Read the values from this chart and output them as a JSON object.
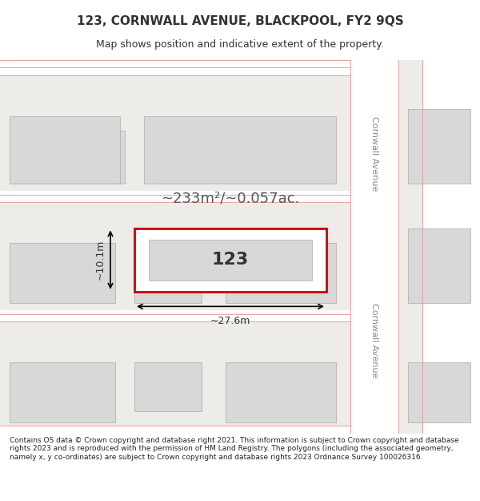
{
  "title": "123, CORNWALL AVENUE, BLACKPOOL, FY2 9QS",
  "subtitle": "Map shows position and indicative extent of the property.",
  "footer": "Contains OS data © Crown copyright and database right 2021. This information is subject to Crown copyright and database rights 2023 and is reproduced with the permission of HM Land Registry. The polygons (including the associated geometry, namely x, y co-ordinates) are subject to Crown copyright and database rights 2023 Ordnance Survey 100026316.",
  "area_text": "~233m²/~0.057ac.",
  "width_label": "~27.6m",
  "height_label": "~10.1m",
  "property_number": "123",
  "bg_color": "#f0eeeb",
  "map_bg": "#f0eeeb",
  "road_color": "#ffffff",
  "grid_line_color": "#e8a0a0",
  "building_fill": "#d8d8d8",
  "building_edge": "#b0b0b0",
  "property_fill": "#ffffff",
  "property_edge": "#cc0000",
  "title_color": "#333333",
  "road_label_color": "#888888"
}
